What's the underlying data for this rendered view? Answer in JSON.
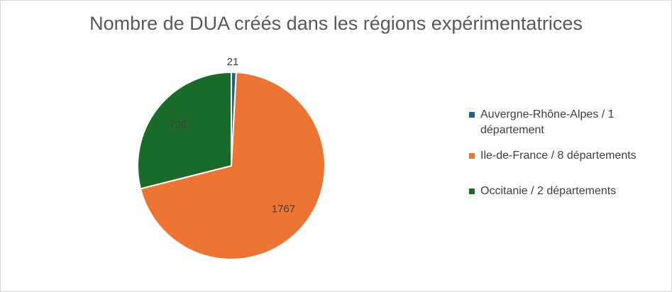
{
  "chart_data": {
    "type": "pie",
    "title": "Nombre de DUA créés dans les régions expérimentatrices",
    "categories": [
      "Auvergne-Rhône-Alpes / 1 département",
      "Ile-de-France / 8 départements",
      "Occitanie / 2 départements"
    ],
    "values": [
      21,
      1767,
      728
    ],
    "colors": [
      "#1f5f8b",
      "#ed7432",
      "#1a6b2a"
    ],
    "legend_position": "right",
    "data_labels": [
      "21",
      "1767",
      "728"
    ]
  }
}
